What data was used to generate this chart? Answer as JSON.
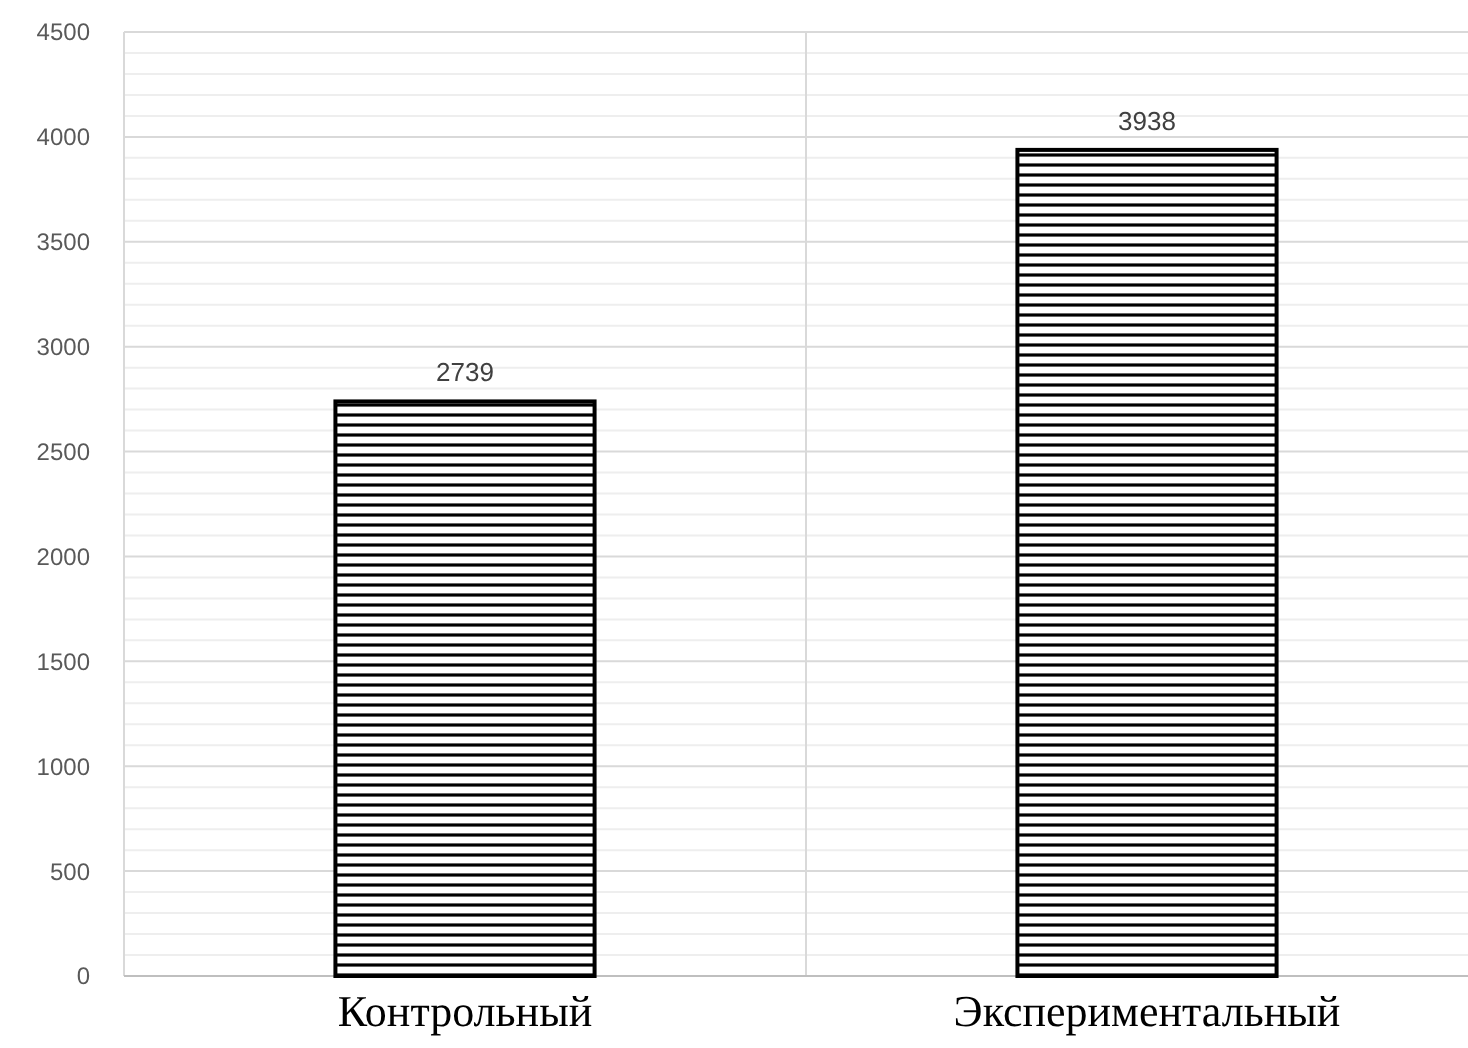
{
  "chart_data": {
    "type": "bar",
    "categories": [
      "Контрольный",
      "Экспериментальный"
    ],
    "values": [
      2739,
      3938
    ],
    "color": "#000000",
    "data_labels": true,
    "ylim": [
      0,
      4500
    ],
    "yticks": [
      0,
      {
        "value": 100,
        "label": null
      },
      {
        "value": 200,
        "label": null
      },
      {
        "value": 300,
        "label": null
      },
      {
        "value": 400,
        "label": null
      },
      500,
      {
        "value": 600,
        "label": null
      },
      {
        "value": 700,
        "label": null
      },
      {
        "value": 800,
        "label": null
      },
      {
        "value": 900,
        "label": null
      },
      1000,
      {
        "value": 1100,
        "label": null
      },
      {
        "value": 1200,
        "label": null
      },
      {
        "value": 1300,
        "label": null
      },
      {
        "value": 1400,
        "label": null
      },
      1500,
      {
        "value": 1600,
        "label": null
      },
      {
        "value": 1700,
        "label": null
      },
      {
        "value": 1800,
        "label": null
      },
      {
        "value": 1900,
        "label": null
      },
      2000,
      {
        "value": 2100,
        "label": null
      },
      {
        "value": 2200,
        "label": null
      },
      {
        "value": 2300,
        "label": null
      },
      {
        "value": 2400,
        "label": null
      },
      2500,
      {
        "value": 2600,
        "label": null
      },
      {
        "value": 2700,
        "label": null
      },
      {
        "value": 2800,
        "label": null
      },
      {
        "value": 2900,
        "label": null
      },
      3000,
      {
        "value": 3100,
        "label": null
      },
      {
        "value": 3200,
        "label": null
      },
      {
        "value": 3300,
        "label": null
      },
      {
        "value": 3400,
        "label": null
      },
      3500,
      {
        "value": 3600,
        "label": null
      },
      {
        "value": 3700,
        "label": null
      },
      {
        "value": 3800,
        "label": null
      },
      {
        "value": 3900,
        "label": null
      },
      4000,
      {
        "value": 4100,
        "label": null
      },
      {
        "value": 4200,
        "label": null
      },
      {
        "value": 4300,
        "label": null
      },
      {
        "value": 4400,
        "label": null
      },
      4500
    ],
    "grid": true
  }
}
